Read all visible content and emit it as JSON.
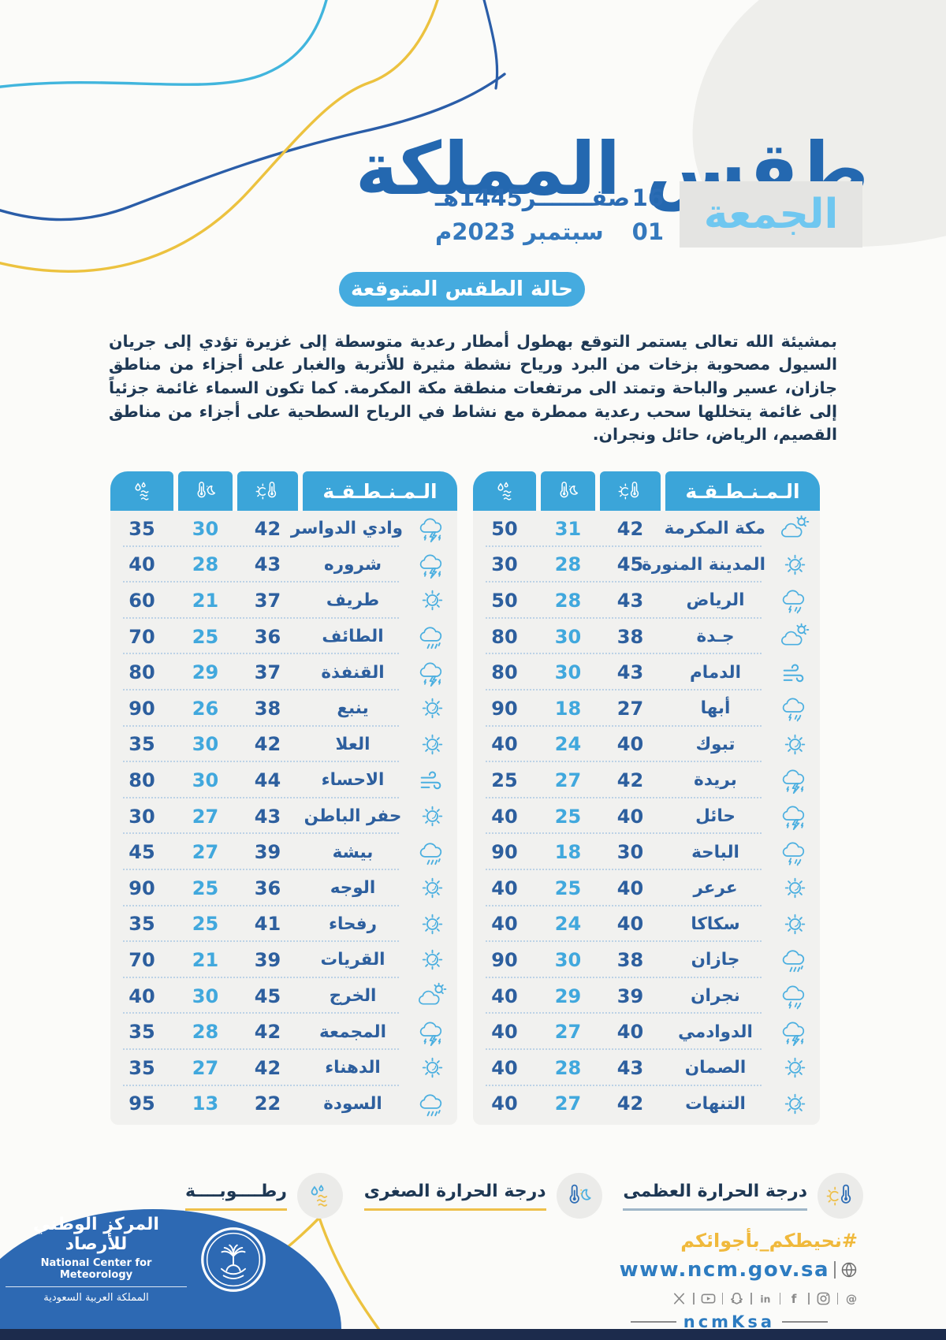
{
  "header": {
    "title": "طقس المملكة",
    "day": "الجمعة",
    "hijri_num": "16",
    "hijri_text": "صفـــــــر1445هـ",
    "greg_num": "01",
    "greg_text": "سبتمبر 2023م"
  },
  "section": {
    "pill_label": "حالة الطقس المتوقعة",
    "forecast_text": "بمشيئة الله تعالى يستمر التوقع بهطول أمطار رعدية متوسطة إلى غزيرة  تؤدي إلى جريان السيول مصحوبة بزخات من البرد ورياح نشطة مثيرة للأتربة والغبار على أجزاء من مناطق جازان، عسير والباحة وتمتد الى مرتفعات منطقة مكة المكرمة. كما تكون السماء غائمة جزئياً إلى غائمة يتخللها سحب رعدية ممطرة مع نشاط في الرياح السطحية على أجزاء من مناطق القصيم، الرياض، حائل ونجران."
  },
  "tables": {
    "region_header_label": "الـمـنـطـقـة",
    "column_icons": [
      "humidity-icon",
      "min-temp-icon",
      "max-temp-icon"
    ],
    "right": {
      "rows": [
        {
          "name": "مكة المكرمة",
          "max": 42,
          "min": 31,
          "humidity": 50,
          "icon": "cloud-sun"
        },
        {
          "name": "المدينة المنورة",
          "max": 45,
          "min": 28,
          "humidity": 30,
          "icon": "sun"
        },
        {
          "name": "الرياض",
          "max": 43,
          "min": 28,
          "humidity": 50,
          "icon": "rain-thunder"
        },
        {
          "name": "جـدة",
          "max": 38,
          "min": 30,
          "humidity": 80,
          "icon": "cloud-sun"
        },
        {
          "name": "الدمام",
          "max": 43,
          "min": 30,
          "humidity": 80,
          "icon": "wind"
        },
        {
          "name": "أبها",
          "max": 27,
          "min": 18,
          "humidity": 90,
          "icon": "rain-thunder"
        },
        {
          "name": "تبوك",
          "max": 40,
          "min": 24,
          "humidity": 40,
          "icon": "sun"
        },
        {
          "name": "بريدة",
          "max": 42,
          "min": 27,
          "humidity": 25,
          "icon": "thunder"
        },
        {
          "name": "حائل",
          "max": 40,
          "min": 25,
          "humidity": 40,
          "icon": "thunder"
        },
        {
          "name": "الباحة",
          "max": 30,
          "min": 18,
          "humidity": 90,
          "icon": "rain-thunder"
        },
        {
          "name": "عرعر",
          "max": 40,
          "min": 25,
          "humidity": 40,
          "icon": "sun"
        },
        {
          "name": "سكاكا",
          "max": 40,
          "min": 24,
          "humidity": 40,
          "icon": "sun"
        },
        {
          "name": "جازان",
          "max": 38,
          "min": 30,
          "humidity": 90,
          "icon": "rain"
        },
        {
          "name": "نجران",
          "max": 39,
          "min": 29,
          "humidity": 40,
          "icon": "rain-thunder"
        },
        {
          "name": "الدوادمي",
          "max": 40,
          "min": 27,
          "humidity": 40,
          "icon": "thunder"
        },
        {
          "name": "الصمان",
          "max": 43,
          "min": 28,
          "humidity": 40,
          "icon": "sun"
        },
        {
          "name": "التنهات",
          "max": 42,
          "min": 27,
          "humidity": 40,
          "icon": "sun"
        }
      ]
    },
    "left": {
      "rows": [
        {
          "name": "وادي الدواسر",
          "max": 42,
          "min": 30,
          "humidity": 35,
          "icon": "thunder"
        },
        {
          "name": "شروره",
          "max": 43,
          "min": 28,
          "humidity": 40,
          "icon": "thunder"
        },
        {
          "name": "طريف",
          "max": 37,
          "min": 21,
          "humidity": 60,
          "icon": "sun"
        },
        {
          "name": "الطائف",
          "max": 36,
          "min": 25,
          "humidity": 70,
          "icon": "rain"
        },
        {
          "name": "القنفذة",
          "max": 37,
          "min": 29,
          "humidity": 80,
          "icon": "thunder"
        },
        {
          "name": "ينبع",
          "max": 38,
          "min": 26,
          "humidity": 90,
          "icon": "sun"
        },
        {
          "name": "العلا",
          "max": 42,
          "min": 30,
          "humidity": 35,
          "icon": "sun"
        },
        {
          "name": "الاحساء",
          "max": 44,
          "min": 30,
          "humidity": 80,
          "icon": "wind"
        },
        {
          "name": "حفر الباطن",
          "max": 43,
          "min": 27,
          "humidity": 30,
          "icon": "sun"
        },
        {
          "name": "بيشة",
          "max": 39,
          "min": 27,
          "humidity": 45,
          "icon": "rain"
        },
        {
          "name": "الوجه",
          "max": 36,
          "min": 25,
          "humidity": 90,
          "icon": "sun"
        },
        {
          "name": "رفحاء",
          "max": 41,
          "min": 25,
          "humidity": 35,
          "icon": "sun"
        },
        {
          "name": "القريات",
          "max": 39,
          "min": 21,
          "humidity": 70,
          "icon": "sun"
        },
        {
          "name": "الخرج",
          "max": 45,
          "min": 30,
          "humidity": 40,
          "icon": "cloud-sun"
        },
        {
          "name": "المجمعة",
          "max": 42,
          "min": 28,
          "humidity": 35,
          "icon": "thunder"
        },
        {
          "name": "الدهناء",
          "max": 42,
          "min": 27,
          "humidity": 35,
          "icon": "sun"
        },
        {
          "name": "السودة",
          "max": 22,
          "min": 13,
          "humidity": 95,
          "icon": "rain"
        }
      ]
    }
  },
  "legend": {
    "items": [
      {
        "label": "درجة الحرارة العظمى",
        "icon": "max-temp-icon",
        "underline_color": "#9fb6c8"
      },
      {
        "label": "درجة الحرارة الصغرى",
        "icon": "min-temp-icon",
        "underline_color": "#eec04b"
      },
      {
        "label": "رطــــوبــــة",
        "icon": "humidity-icon",
        "underline_color": "#eec04b"
      }
    ]
  },
  "footer": {
    "hashtag": "#نحيطكم_بأجوائكم",
    "website": "www.ncm.gov.sa",
    "handle": "ncmKsa",
    "org_ar": "المركز الوطني للأرصاد",
    "org_en": "National Center for Meteorology",
    "country": "المملكة العربية السعودية",
    "social_icons": [
      "x",
      "youtube",
      "snapchat",
      "linkedin",
      "facebook",
      "instagram",
      "threads"
    ]
  },
  "colors": {
    "dark_blue": "#2468b0",
    "table_blue": "#3ba5d9",
    "light_blue": "#41a8dd",
    "day_blue": "#6fc7f0",
    "yellow": "#eec04b",
    "navy": "#1c2b4c",
    "dome_blue": "#2d69b3"
  }
}
